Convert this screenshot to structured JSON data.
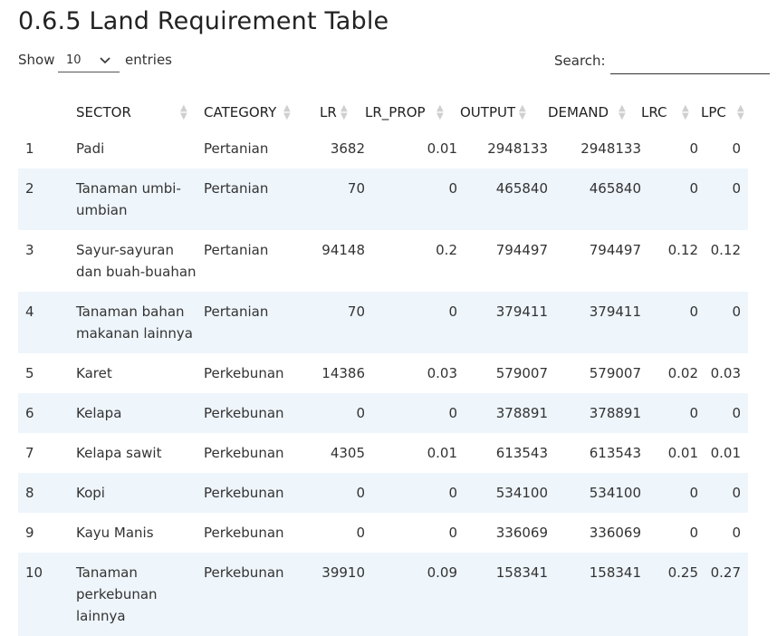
{
  "title": "0.6.5 Land Requirement Table",
  "controls": {
    "show_label": "Show",
    "length_value": "10",
    "entries_label": "entries",
    "search_label": "Search:",
    "search_value": ""
  },
  "table": {
    "headers": [
      "",
      "SECTOR",
      "CATEGORY",
      "LR",
      "LR_PROP",
      "OUTPUT",
      "DEMAND",
      "LRC",
      "LPC"
    ],
    "rows": [
      [
        "1",
        "Padi",
        "Pertanian",
        "3682",
        "0.01",
        "2948133",
        "2948133",
        "0",
        "0"
      ],
      [
        "2",
        "Tanaman umbi-umbian",
        "Pertanian",
        "70",
        "0",
        "465840",
        "465840",
        "0",
        "0"
      ],
      [
        "3",
        "Sayur-sayuran dan buah-buahan",
        "Pertanian",
        "94148",
        "0.2",
        "794497",
        "794497",
        "0.12",
        "0.12"
      ],
      [
        "4",
        "Tanaman bahan makanan lainnya",
        "Pertanian",
        "70",
        "0",
        "379411",
        "379411",
        "0",
        "0"
      ],
      [
        "5",
        "Karet",
        "Perkebunan",
        "14386",
        "0.03",
        "579007",
        "579007",
        "0.02",
        "0.03"
      ],
      [
        "6",
        "Kelapa",
        "Perkebunan",
        "0",
        "0",
        "378891",
        "378891",
        "0",
        "0"
      ],
      [
        "7",
        "Kelapa sawit",
        "Perkebunan",
        "4305",
        "0.01",
        "613543",
        "613543",
        "0.01",
        "0.01"
      ],
      [
        "8",
        "Kopi",
        "Perkebunan",
        "0",
        "0",
        "534100",
        "534100",
        "0",
        "0"
      ],
      [
        "9",
        "Kayu Manis",
        "Perkebunan",
        "0",
        "0",
        "336069",
        "336069",
        "0",
        "0"
      ],
      [
        "10",
        "Tanaman perkebunan lainnya",
        "Perkebunan",
        "39910",
        "0.09",
        "158341",
        "158341",
        "0.25",
        "0.27"
      ]
    ]
  }
}
